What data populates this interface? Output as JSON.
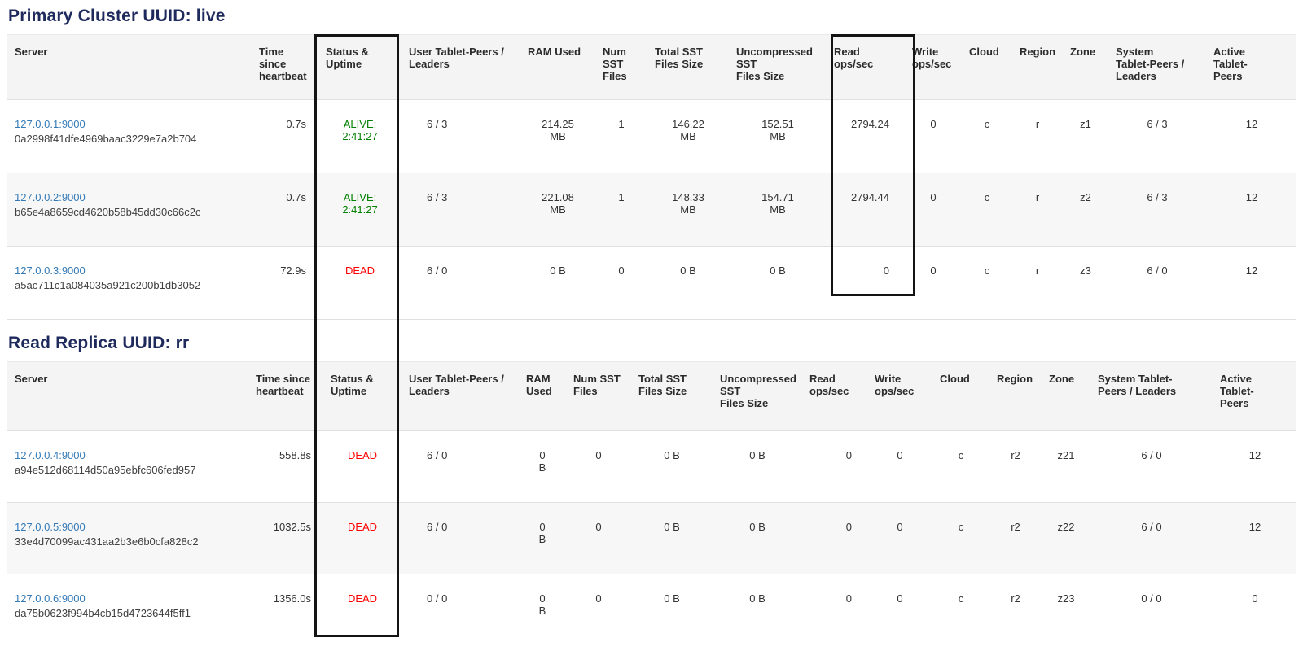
{
  "colors": {
    "title": "#1f2a5c",
    "link": "#337ab7",
    "alive": "#008000",
    "dead": "#ff0000",
    "header_bg": "#f4f4f4",
    "stripe_bg": "#f7f7f7",
    "highlight_box": "#141414"
  },
  "annotations": {
    "highlighted_columns": [
      "Status & Uptime",
      "Read ops/sec"
    ]
  },
  "tables": [
    {
      "title": "Primary Cluster UUID: live",
      "columns": [
        {
          "key": "server",
          "label": "Server"
        },
        {
          "key": "heartbeat",
          "label": "Time\nsince\nheartbeat"
        },
        {
          "key": "status",
          "label": "Status &\nUptime"
        },
        {
          "key": "user_tablets",
          "label": "User Tablet-Peers /\nLeaders"
        },
        {
          "key": "ram",
          "label": "RAM Used"
        },
        {
          "key": "num_sst",
          "label": "Num SST\nFiles"
        },
        {
          "key": "total_sst",
          "label": "Total SST\nFiles Size"
        },
        {
          "key": "uncompressed_sst",
          "label": "Uncompressed\nSST\nFiles Size"
        },
        {
          "key": "read_ops",
          "label": "Read\nops/sec"
        },
        {
          "key": "write_ops",
          "label": "Write\nops/sec"
        },
        {
          "key": "cloud",
          "label": "Cloud"
        },
        {
          "key": "region",
          "label": "Region"
        },
        {
          "key": "zone",
          "label": "Zone"
        },
        {
          "key": "system_tablets",
          "label": "System\nTablet-Peers /\nLeaders"
        },
        {
          "key": "active_tablets",
          "label": "Active\nTablet-\nPeers"
        }
      ],
      "rows": [
        {
          "server": "127.0.0.1:9000",
          "uuid": "0a2998f41dfe4969baac3229e7a2b704",
          "heartbeat": "0.7s",
          "status": "ALIVE:\n2:41:27",
          "status_state": "alive",
          "user_tablets": "6 / 3",
          "ram": "214.25\nMB",
          "num_sst": "1",
          "total_sst": "146.22\nMB",
          "uncompressed_sst": "152.51\nMB",
          "read_ops": "2794.24",
          "write_ops": "0",
          "cloud": "c",
          "region": "r",
          "zone": "z1",
          "system_tablets": "6 / 3",
          "active_tablets": "12"
        },
        {
          "server": "127.0.0.2:9000",
          "uuid": "b65e4a8659cd4620b58b45dd30c66c2c",
          "heartbeat": "0.7s",
          "status": "ALIVE:\n2:41:27",
          "status_state": "alive",
          "user_tablets": "6 / 3",
          "ram": "221.08\nMB",
          "num_sst": "1",
          "total_sst": "148.33\nMB",
          "uncompressed_sst": "154.71\nMB",
          "read_ops": "2794.44",
          "write_ops": "0",
          "cloud": "c",
          "region": "r",
          "zone": "z2",
          "system_tablets": "6 / 3",
          "active_tablets": "12"
        },
        {
          "server": "127.0.0.3:9000",
          "uuid": "a5ac711c1a084035a921c200b1db3052",
          "heartbeat": "72.9s",
          "status": "DEAD",
          "status_state": "dead",
          "user_tablets": "6 / 0",
          "ram": "0 B",
          "num_sst": "0",
          "total_sst": "0 B",
          "uncompressed_sst": "0 B",
          "read_ops": "0",
          "write_ops": "0",
          "cloud": "c",
          "region": "r",
          "zone": "z3",
          "system_tablets": "6 / 0",
          "active_tablets": "12"
        }
      ]
    },
    {
      "title": "Read Replica UUID: rr",
      "columns": [
        {
          "key": "server",
          "label": "Server"
        },
        {
          "key": "heartbeat",
          "label": "Time since\nheartbeat"
        },
        {
          "key": "status",
          "label": "Status &\nUptime"
        },
        {
          "key": "user_tablets",
          "label": "User Tablet-Peers /\nLeaders"
        },
        {
          "key": "ram",
          "label": "RAM\nUsed"
        },
        {
          "key": "num_sst",
          "label": "Num SST\nFiles"
        },
        {
          "key": "total_sst",
          "label": "Total SST\nFiles Size"
        },
        {
          "key": "uncompressed_sst",
          "label": "Uncompressed\nSST\nFiles Size"
        },
        {
          "key": "read_ops",
          "label": "Read\nops/sec"
        },
        {
          "key": "write_ops",
          "label": "Write\nops/sec"
        },
        {
          "key": "cloud",
          "label": "Cloud"
        },
        {
          "key": "region",
          "label": "Region"
        },
        {
          "key": "zone",
          "label": "Zone"
        },
        {
          "key": "system_tablets",
          "label": "System Tablet-\nPeers / Leaders"
        },
        {
          "key": "active_tablets",
          "label": "Active\nTablet-\nPeers"
        }
      ],
      "rows": [
        {
          "server": "127.0.0.4:9000",
          "uuid": "a94e512d68114d50a95ebfc606fed957",
          "heartbeat": "558.8s",
          "status": "DEAD",
          "status_state": "dead",
          "user_tablets": "6 / 0",
          "ram": "0\nB",
          "num_sst": "0",
          "total_sst": "0 B",
          "uncompressed_sst": "0 B",
          "read_ops": "0",
          "write_ops": "0",
          "cloud": "c",
          "region": "r2",
          "zone": "z21",
          "system_tablets": "6 / 0",
          "active_tablets": "12"
        },
        {
          "server": "127.0.0.5:9000",
          "uuid": "33e4d70099ac431aa2b3e6b0cfa828c2",
          "heartbeat": "1032.5s",
          "status": "DEAD",
          "status_state": "dead",
          "user_tablets": "6 / 0",
          "ram": "0\nB",
          "num_sst": "0",
          "total_sst": "0 B",
          "uncompressed_sst": "0 B",
          "read_ops": "0",
          "write_ops": "0",
          "cloud": "c",
          "region": "r2",
          "zone": "z22",
          "system_tablets": "6 / 0",
          "active_tablets": "12"
        },
        {
          "server": "127.0.0.6:9000",
          "uuid": "da75b0623f994b4cb15d4723644f5ff1",
          "heartbeat": "1356.0s",
          "status": "DEAD",
          "status_state": "dead",
          "user_tablets": "0 / 0",
          "ram": "0\nB",
          "num_sst": "0",
          "total_sst": "0 B",
          "uncompressed_sst": "0 B",
          "read_ops": "0",
          "write_ops": "0",
          "cloud": "c",
          "region": "r2",
          "zone": "z23",
          "system_tablets": "0 / 0",
          "active_tablets": "0"
        }
      ]
    }
  ]
}
